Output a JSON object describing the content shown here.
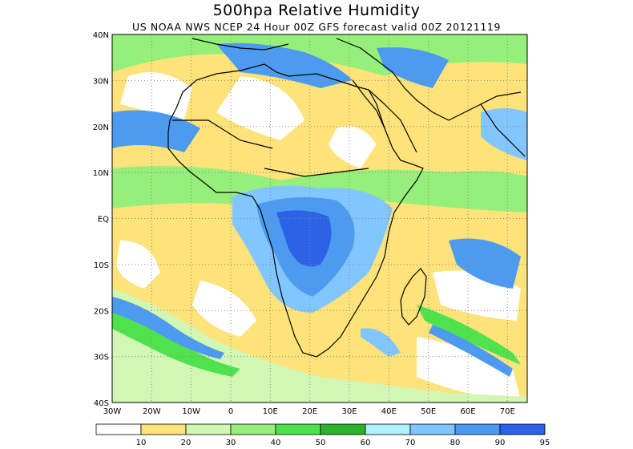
{
  "title": "500hpa Relative Humidity",
  "subtitle": "US NOAA NWS NCEP 24 Hour 00Z GFS forecast valid 00Z 20121119",
  "lat_labels": [
    "40N",
    "30N",
    "20N",
    "10N",
    "EQ",
    "10S",
    "20S",
    "30S",
    "40S"
  ],
  "lon_labels": [
    "30W",
    "20W",
    "10W",
    "0",
    "10E",
    "20E",
    "30E",
    "40E",
    "50E",
    "60E",
    "70E"
  ],
  "colorbar": {
    "labels": [
      "10",
      "20",
      "30",
      "40",
      "50",
      "60",
      "70",
      "80",
      "90",
      "95"
    ],
    "colors": [
      "#ffffff",
      "#fee27a",
      "#d2f7b4",
      "#96ef7a",
      "#50e24c",
      "#2db22e",
      "#aef1ff",
      "#82c6ff",
      "#4d9bf0",
      "#2b62e6"
    ]
  },
  "colors": {
    "background": "#ffffff",
    "coastline": "#000000",
    "grid": "#888888"
  }
}
